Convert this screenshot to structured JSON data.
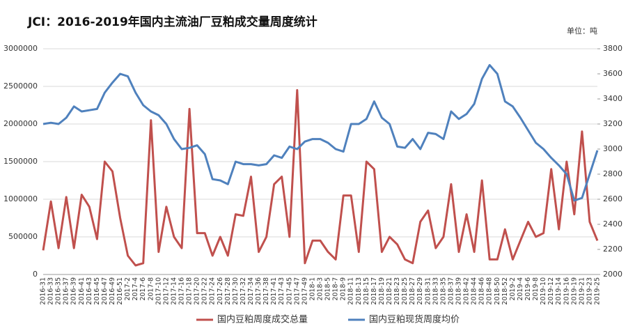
{
  "chart_data": {
    "type": "line",
    "title": "JCI：2016-2019年国内主流油厂豆粕成交量周度统计",
    "unit_label": "单位：吨",
    "categories": [
      "2016-31",
      "2016-33",
      "2016-35",
      "2016-37",
      "2016-39",
      "2016-41",
      "2016-43",
      "2016-45",
      "2016-47",
      "2016-49",
      "2016-51",
      "2017-2",
      "2017-4",
      "2017-6",
      "2017-8",
      "2017-10",
      "2017-12",
      "2017-14",
      "2017-16",
      "2017-18",
      "2017-20",
      "2017-22",
      "2017-24",
      "2017-26",
      "2017-28",
      "2017-30",
      "2017-32",
      "2017-34",
      "2017-36",
      "2017-38",
      "2017-41",
      "2017-43",
      "2017-45",
      "2017-47",
      "2017-49",
      "2018-1",
      "2018-3",
      "2018-5",
      "2018-7",
      "2018-9",
      "2018-11",
      "2018-13",
      "2018-15",
      "2018-17",
      "2018-19",
      "2018-21",
      "2018-23",
      "2018-25",
      "2018-27",
      "2018-29",
      "2018-31",
      "2018-33",
      "2018-35",
      "2018-37",
      "2018-39",
      "2018-42",
      "2018-44",
      "2018-46",
      "2018-48",
      "2018-50",
      "2018-52",
      "2019-2",
      "2019-4",
      "2019-6",
      "2019-8",
      "2019-10",
      "2019-12",
      "2019-14",
      "2019-16",
      "2019-19",
      "2019-21",
      "2019-23",
      "2019-25"
    ],
    "series": [
      {
        "name": "国内豆粕周度成交总量",
        "color": "#c0504d",
        "values": [
          320000,
          970000,
          350000,
          1030000,
          350000,
          1060000,
          900000,
          470000,
          1500000,
          1370000,
          750000,
          250000,
          120000,
          150000,
          2050000,
          300000,
          900000,
          500000,
          350000,
          2200000,
          550000,
          550000,
          250000,
          500000,
          250000,
          800000,
          780000,
          1300000,
          300000,
          500000,
          1200000,
          1300000,
          500000,
          2450000,
          150000,
          450000,
          450000,
          300000,
          200000,
          1050000,
          1050000,
          300000,
          1500000,
          1400000,
          300000,
          500000,
          400000,
          200000,
          150000,
          700000,
          850000,
          350000,
          500000,
          1200000,
          300000,
          800000,
          300000,
          1250000,
          200000,
          200000,
          600000,
          200000,
          450000,
          700000,
          500000,
          550000,
          1400000,
          600000,
          1500000,
          800000,
          1900000,
          700000,
          450000
        ]
      },
      {
        "name": "国内豆粕现货周度均价",
        "color": "#4f81bd",
        "axis": "y2",
        "values": [
          3200,
          3210,
          3200,
          3250,
          3340,
          3300,
          3310,
          3320,
          3450,
          3530,
          3600,
          3580,
          3450,
          3350,
          3300,
          3270,
          3200,
          3080,
          3000,
          3010,
          3030,
          2960,
          2760,
          2750,
          2720,
          2900,
          2880,
          2880,
          2870,
          2880,
          2950,
          2930,
          3020,
          3000,
          3060,
          3080,
          3080,
          3050,
          3000,
          2980,
          3200,
          3200,
          3240,
          3380,
          3250,
          3200,
          3020,
          3010,
          3080,
          3000,
          3130,
          3120,
          3080,
          3300,
          3240,
          3280,
          3360,
          3560,
          3670,
          3600,
          3380,
          3340,
          3250,
          3150,
          3050,
          3000,
          2930,
          2870,
          2800,
          2590,
          2610,
          2800,
          2990
        ]
      }
    ],
    "ylim": [
      0,
      3000000
    ],
    "yticks": [
      0,
      500000,
      1000000,
      1500000,
      2000000,
      2500000,
      3000000
    ],
    "y2lim": [
      2000,
      3800
    ],
    "y2ticks": [
      2000,
      2200,
      2400,
      2600,
      2800,
      3000,
      3200,
      3400,
      3600,
      3800
    ],
    "grid": true,
    "legend": "bottom"
  }
}
